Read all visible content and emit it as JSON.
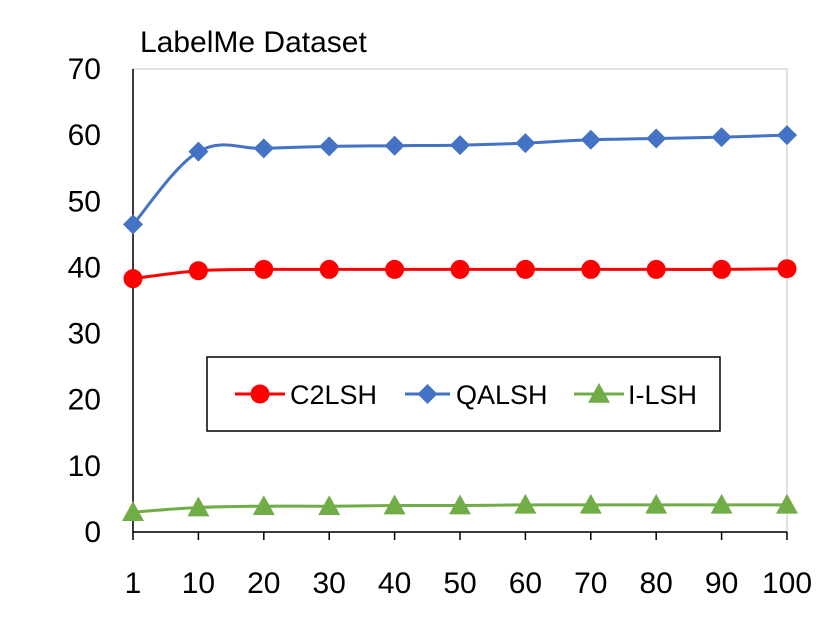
{
  "chart_data": {
    "type": "line",
    "title": "LabelMe Dataset",
    "xlabel": "",
    "ylabel": "",
    "x": [
      "1",
      "10",
      "20",
      "30",
      "40",
      "50",
      "60",
      "70",
      "80",
      "90",
      "100"
    ],
    "ylim": [
      0,
      70
    ],
    "yticks": [
      0,
      10,
      20,
      30,
      40,
      50,
      60,
      70
    ],
    "grid": false,
    "legend_position": "center",
    "series": [
      {
        "name": "C2LSH",
        "color": "#ff0000",
        "marker": "circle",
        "values": [
          38.3,
          39.5,
          39.7,
          39.7,
          39.7,
          39.7,
          39.7,
          39.7,
          39.7,
          39.7,
          39.8
        ]
      },
      {
        "name": "QALSH",
        "color": "#4472c4",
        "marker": "diamond",
        "values": [
          46.5,
          57.5,
          58.0,
          58.3,
          58.4,
          58.5,
          58.8,
          59.3,
          59.5,
          59.7,
          60.0
        ]
      },
      {
        "name": "I-LSH",
        "color": "#70ad47",
        "marker": "triangle",
        "values": [
          3.0,
          3.7,
          3.9,
          3.9,
          4.0,
          4.0,
          4.1,
          4.1,
          4.1,
          4.1,
          4.1
        ]
      }
    ]
  }
}
